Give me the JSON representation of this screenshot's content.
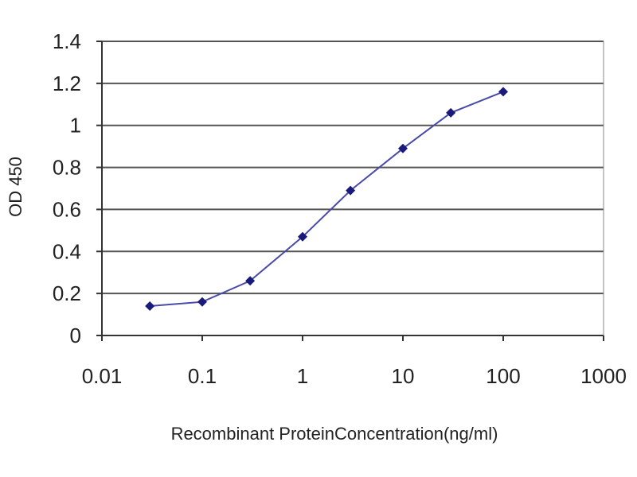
{
  "chart_data": {
    "type": "line",
    "title": "",
    "xlabel": "Recombinant ProteinConcentration(ng/ml)",
    "ylabel": "OD 450",
    "x_scale": "log",
    "xlim": [
      0.01,
      1000
    ],
    "ylim": [
      0,
      1.4
    ],
    "x_ticks": [
      "0.01",
      "0.1",
      "1",
      "10",
      "100",
      "1000"
    ],
    "y_ticks": [
      "0",
      "0.2",
      "0.4",
      "0.6",
      "0.8",
      "1",
      "1.2",
      "1.4"
    ],
    "grid": "horizontal",
    "legend": "none",
    "series": [
      {
        "x": [
          0.03,
          0.1,
          0.3,
          1,
          3,
          10,
          30,
          100
        ],
        "y": [
          0.14,
          0.16,
          0.26,
          0.47,
          0.69,
          0.89,
          1.06,
          1.16
        ]
      }
    ],
    "colors": {
      "line": "#4a4aa8",
      "marker": "#1a1a7a",
      "grid": "#555555",
      "axis": "#333333"
    }
  }
}
